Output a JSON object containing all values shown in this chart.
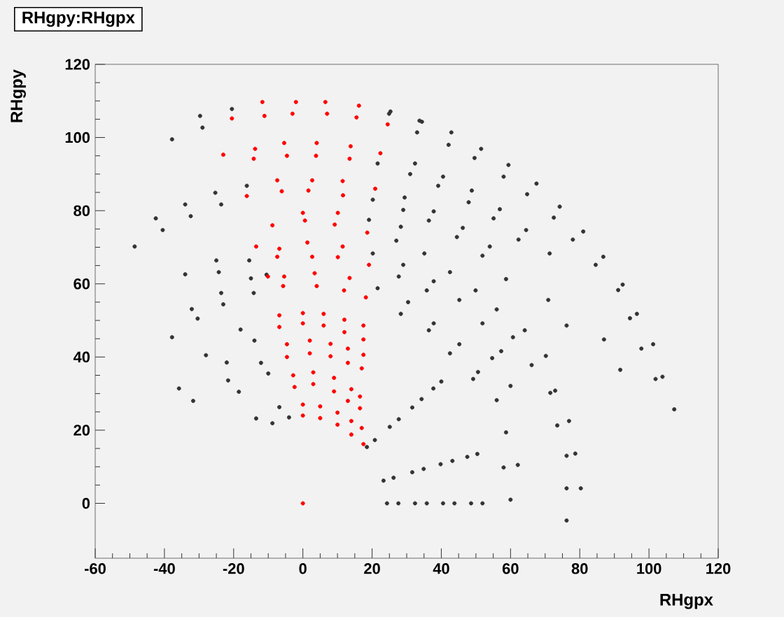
{
  "chart_data": {
    "type": "scatter",
    "title": "RHgpy:RHgpx",
    "xlabel": "RHgpx",
    "ylabel": "RHgpy",
    "xlim": [
      -60,
      120
    ],
    "ylim": [
      -15,
      120
    ],
    "xticks": [
      -60,
      -40,
      -20,
      0,
      20,
      40,
      60,
      80,
      100,
      120
    ],
    "yticks": [
      0,
      20,
      40,
      60,
      80,
      100,
      120
    ],
    "series": [
      {
        "color": "#333333",
        "x": [
          -29.7,
          -20.5,
          -37.8,
          -29,
          -48.6,
          -40.5,
          -42.5,
          -34,
          -32.4,
          -23.6,
          -25.3,
          -16.2,
          -34,
          -25,
          -24.3,
          -15.5,
          -15,
          -10.5,
          -32.1,
          -23.6,
          -23,
          -14.2,
          -37.8,
          -30.4,
          24.9,
          33.7,
          21.6,
          31,
          20.2,
          29,
          19.1,
          28.3,
          25.3,
          34.4,
          33,
          42.1,
          42.9,
          51.5,
          49.6,
          58,
          59.4,
          67.5,
          64.8,
          72.5,
          74.2,
          81,
          78,
          84.6,
          86.8,
          92.4,
          32.4,
          40.5,
          39.1,
          47.9,
          48.8,
          56.9,
          55.1,
          62.3,
          64.5,
          71.3,
          29.4,
          37.8,
          36.4,
          44.5,
          46.2,
          54,
          51.9,
          58.7,
          27,
          35.1,
          20.2,
          29,
          27.7,
          35.8,
          37.8,
          45.2,
          42.5,
          49.9,
          21.6,
          30.4,
          28.3,
          36.4,
          37.8,
          45.2,
          42.5,
          49.2,
          51.9,
          57.3,
          56,
          60.7,
          64.1,
          70.2,
          70.9,
          76.2,
          50.6,
          56,
          54.7,
          60,
          66.1,
          71.5,
          72.9,
          76.9,
          58.7,
          62.1,
          73.5,
          76.2,
          78.7,
          80.3,
          76.2,
          76.2,
          58,
          60,
          87,
          91.7,
          91.1,
          94.5,
          96.5,
          101.2,
          97.8,
          101.9,
          103.9,
          107.3,
          18.5,
          23.3,
          24.3,
          20.8,
          26.2,
          27.6,
          25.1,
          31.6,
          32.4,
          27.7,
          34.9,
          35.8,
          31.6,
          39.8,
          40.5,
          34.3,
          43.2,
          43.8,
          37.7,
          47.5,
          48.6,
          40,
          50.4,
          51.9,
          -35.8,
          -28,
          -18,
          -31.7,
          -22,
          -14,
          -21.6,
          -12.1,
          -18.5,
          -10,
          -13.5,
          -6.8,
          -8.8,
          -4
        ],
        "values": [
          105.9,
          107.8,
          99.5,
          102.7,
          70.2,
          74.7,
          77.9,
          81.7,
          78.5,
          81.7,
          84.9,
          86.8,
          62.6,
          66.4,
          63.2,
          66.4,
          61.5,
          62.5,
          53.1,
          57.5,
          54.4,
          57.5,
          45.4,
          50.5,
          106.5,
          104.6,
          92.9,
          90,
          83,
          80.2,
          77.5,
          75.6,
          107.1,
          104.3,
          101.4,
          98,
          101.4,
          96.9,
          94.4,
          89.3,
          92.5,
          87.4,
          84.5,
          78.1,
          81.1,
          74.3,
          72.1,
          65.2,
          67.4,
          59.8,
          92.9,
          89.3,
          86.8,
          82.3,
          85.5,
          80.4,
          77.9,
          72.1,
          74.7,
          68.3,
          83.6,
          79.8,
          77.3,
          72.8,
          75.3,
          70.2,
          67.7,
          61.3,
          71.8,
          68.3,
          68.3,
          65.2,
          62,
          58.2,
          60.7,
          55.6,
          63.2,
          58.2,
          58.8,
          55,
          51.8,
          47.3,
          49.2,
          43.5,
          41,
          34,
          49.2,
          41.6,
          53,
          45.4,
          47.3,
          40.3,
          55.6,
          48.6,
          35.9,
          28.2,
          39.7,
          32.1,
          37.8,
          30.2,
          30.8,
          22.5,
          19.4,
          10.5,
          21.3,
          13,
          13.6,
          4.1,
          4.1,
          -4.7,
          9.8,
          1,
          44.8,
          36.5,
          58.3,
          50.6,
          51.8,
          43.5,
          42.3,
          34,
          34.6,
          25.7,
          15.4,
          6.2,
          0,
          17.3,
          7,
          0,
          20.9,
          8.5,
          0,
          23,
          9.4,
          0,
          26.2,
          10.7,
          0,
          28.5,
          11.6,
          0,
          31.4,
          12.7,
          0,
          33.3,
          13.5,
          0,
          31.4,
          40.5,
          47.5,
          28,
          38.5,
          44.5,
          33.6,
          38.4,
          30.5,
          35.5,
          23.2,
          26.3,
          21.9,
          23.5
        ]
      },
      {
        "color": "#ff0000",
        "x": [
          -11.7,
          -2,
          6.5,
          16.2,
          -20.5,
          -11.1,
          -3,
          7,
          15.5,
          24.5,
          -5.4,
          4,
          -23,
          -13.8,
          -14.2,
          -4.6,
          3.8,
          13.5,
          13.8,
          22.4,
          -7.4,
          2.7,
          -16.2,
          -6.1,
          1.6,
          11.6,
          11.5,
          20.9,
          0,
          10.1,
          -8.8,
          0.6,
          9.2,
          18.6,
          -13.5,
          -6.8,
          -7.4,
          2.7,
          1.3,
          11.5,
          10.1,
          19.1,
          -10.1,
          -5.4,
          -5.7,
          4,
          3.4,
          13.5,
          11.9,
          18.2,
          -6.8,
          0,
          6,
          12,
          17.5,
          -6.8,
          0,
          6,
          12,
          17.5,
          -4.6,
          2,
          8,
          13,
          17.5,
          -4.6,
          2,
          8,
          13,
          17,
          -2.8,
          3,
          9,
          14,
          16.5,
          -2.4,
          3,
          9,
          13,
          16.5,
          0,
          5,
          10,
          14,
          17,
          0,
          5,
          10,
          14,
          17.5,
          0
        ],
        "values": [
          109.7,
          109.7,
          109.7,
          108.7,
          105.2,
          105.9,
          106.5,
          106.5,
          105.5,
          103.6,
          98.5,
          98.5,
          95.3,
          96.9,
          94.2,
          95,
          95,
          94.2,
          97.6,
          95.7,
          88.3,
          88.3,
          84,
          85.3,
          85.5,
          84.2,
          88.1,
          86,
          79.4,
          79.4,
          76,
          77.3,
          76.2,
          74,
          70.2,
          69.6,
          67.4,
          67.4,
          71.3,
          70.2,
          67.3,
          65.2,
          62,
          62,
          59.4,
          59.4,
          62.9,
          61.6,
          58.2,
          56.3,
          51.4,
          52,
          51.8,
          50.2,
          48.6,
          48.2,
          49.2,
          48.6,
          46.8,
          44.8,
          43.5,
          44.5,
          43.6,
          42.3,
          40.6,
          40,
          41,
          40.2,
          38.4,
          36.9,
          35,
          35.8,
          34.3,
          31.2,
          29.2,
          31.8,
          32.6,
          30.6,
          28,
          26,
          27,
          26.5,
          24.8,
          22.5,
          20.6,
          24,
          23.3,
          21.5,
          18.8,
          16.2,
          0
        ]
      }
    ]
  }
}
